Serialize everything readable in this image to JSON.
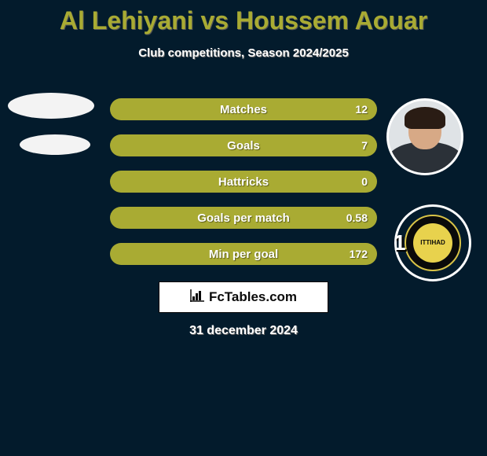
{
  "title": "Al Lehiyani vs Houssem Aouar",
  "title_color": "#a9ab33",
  "subtitle": "Club competitions, Season 2024/2025",
  "subtitle_color": "#ffffff",
  "background_color": "#031b2c",
  "date": "31 december 2024",
  "date_color": "#ffffff",
  "stats": [
    {
      "label": "Matches",
      "right_value": "12",
      "bar_color": "#a9ab33"
    },
    {
      "label": "Goals",
      "right_value": "7",
      "bar_color": "#a9ab33"
    },
    {
      "label": "Hattricks",
      "right_value": "0",
      "bar_color": "#a9ab33"
    },
    {
      "label": "Goals per match",
      "right_value": "0.58",
      "bar_color": "#a9ab33"
    },
    {
      "label": "Min per goal",
      "right_value": "172",
      "bar_color": "#a9ab33"
    }
  ],
  "avatar_left": {
    "ellipse_color": "#f3f3f3"
  },
  "avatar_right": {
    "bg_color": "#dfe3e6",
    "skin_color": "#d7a986",
    "hair_color": "#2a1c14",
    "shirt_color": "#2b3138"
  },
  "club_badge": {
    "bg_color": "#031b2c",
    "ring_border_color": "#d8c347",
    "ring_bg_color": "#0a0a0a",
    "center_bg_color": "#e8d24d",
    "center_text": "ITTIHAD",
    "center_text_color": "#0a0a0a",
    "overlay_number": "1"
  },
  "fctables": {
    "text": "FcTables.com",
    "border_color": "#0a0a0a",
    "bg_color": "#ffffff",
    "text_color": "#0a0a0a"
  }
}
